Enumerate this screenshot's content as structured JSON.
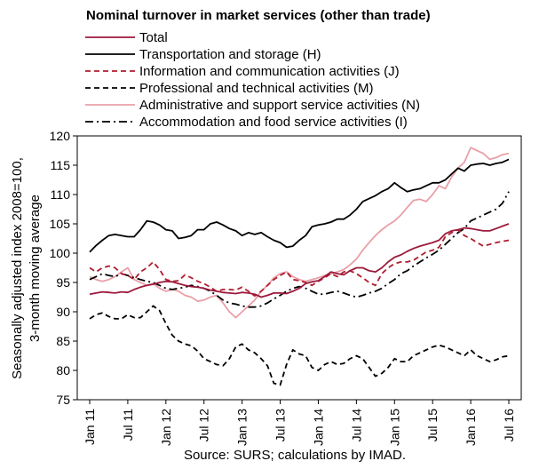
{
  "chart_data": {
    "type": "line",
    "title": "Nominal turnover in market services (other than trade)",
    "ylabel_lines": [
      "Seasonally adjusted index 2008=100,",
      "3-month moving average"
    ],
    "xlabel": "",
    "source": "Source: SURS; calculations by IMAD.",
    "ylim": [
      75,
      120
    ],
    "y_ticks": [
      75,
      80,
      85,
      90,
      95,
      100,
      105,
      110,
      115,
      120
    ],
    "x_ticks": [
      "Jan 11",
      "Jul 11",
      "Jan 12",
      "Jul 12",
      "Jan 13",
      "Jul 13",
      "Jan 14",
      "Jul 14",
      "Jan 15",
      "Jul 15",
      "Jan 16",
      "Jul 16"
    ],
    "grid": false,
    "legend_position": "top",
    "series": [
      {
        "name": "Total",
        "color": "#9c1a3c",
        "dash": "solid",
        "values": [
          93,
          93.2,
          93.4,
          93.3,
          93.2,
          93.4,
          93.3,
          93.8,
          94.2,
          94.5,
          94.7,
          95.0,
          95.2,
          95.1,
          94.8,
          94.5,
          94.3,
          94.2,
          94.0,
          93.7,
          93.5,
          93.3,
          93.2,
          93.1,
          93.3,
          93.2,
          93.0,
          92.5,
          92.8,
          93.2,
          93.2,
          93.1,
          93.5,
          94.0,
          94.8,
          95.1,
          95.3,
          96.0,
          96.8,
          96.5,
          96.3,
          97.0,
          97.5,
          97.5,
          97.0,
          96.8,
          97.5,
          98.5,
          99.3,
          99.7,
          100.3,
          100.8,
          101.2,
          101.5,
          101.8,
          102.2,
          103.3,
          103.8,
          104.0,
          104.3,
          104.2,
          104.0,
          103.8,
          103.8,
          104.2,
          104.6,
          105.0
        ]
      },
      {
        "name": "Transportation and storage (H)",
        "color": "#000000",
        "dash": "solid",
        "values": [
          100.2,
          101.3,
          102.2,
          103.0,
          103.2,
          103.0,
          102.8,
          102.8,
          104.0,
          105.5,
          105.3,
          104.8,
          104.0,
          103.8,
          102.5,
          102.7,
          103.0,
          104.0,
          104.0,
          105.0,
          105.3,
          104.8,
          104.2,
          103.8,
          103.0,
          103.5,
          103.2,
          103.5,
          102.8,
          102.2,
          101.8,
          101.0,
          101.2,
          102.2,
          103.0,
          104.5,
          104.8,
          105.0,
          105.3,
          105.8,
          105.8,
          106.5,
          107.5,
          108.8,
          109.3,
          109.8,
          110.5,
          111.0,
          112.0,
          111.2,
          110.5,
          110.8,
          111.0,
          111.5,
          112.0,
          112.0,
          112.5,
          113.5,
          114.5,
          114.0,
          115.0,
          115.2,
          115.3,
          115.0,
          115.3,
          115.5,
          116.0
        ]
      },
      {
        "name": "Information and communication activities (J)",
        "color": "#b01c2e",
        "dash": "dashed",
        "values": [
          97.5,
          96.8,
          97.5,
          97.8,
          97.5,
          96.5,
          96.2,
          95.5,
          96.8,
          97.5,
          98.5,
          97.2,
          95.5,
          95.2,
          95.3,
          96.3,
          95.8,
          95.2,
          94.8,
          94.2,
          93.5,
          93.8,
          93.8,
          93.7,
          94.2,
          93.5,
          92.7,
          93.5,
          94.5,
          95.5,
          96.2,
          96.8,
          95.5,
          95.3,
          95.0,
          94.5,
          95.2,
          95.8,
          96.5,
          96.0,
          96.8,
          97.0,
          96.5,
          95.8,
          95.0,
          94.5,
          96.5,
          97.5,
          98.2,
          98.5,
          98.5,
          98.8,
          99.5,
          100.2,
          100.5,
          101.0,
          102.8,
          103.5,
          104.0,
          103.0,
          102.5,
          101.8,
          101.2,
          101.5,
          101.8,
          102.0,
          102.2
        ]
      },
      {
        "name": "Professional and technical activities (M)",
        "color": "#000000",
        "dash": "dashed",
        "values": [
          88.8,
          89.5,
          89.8,
          89.2,
          88.8,
          88.8,
          89.5,
          89.0,
          89.0,
          90.0,
          91.0,
          90.2,
          88.0,
          86.0,
          85.0,
          84.5,
          84.2,
          83.3,
          82.0,
          81.5,
          81.0,
          80.8,
          82.0,
          84.0,
          84.5,
          83.5,
          83.0,
          82.0,
          80.8,
          77.8,
          77.5,
          81.0,
          83.5,
          82.8,
          82.5,
          80.5,
          80.0,
          81.0,
          81.5,
          81.0,
          81.2,
          82.0,
          82.5,
          82.0,
          80.5,
          79.0,
          79.5,
          80.5,
          82.0,
          81.5,
          81.5,
          82.5,
          83.0,
          83.5,
          84.0,
          84.3,
          84.0,
          83.5,
          83.0,
          82.5,
          83.5,
          82.5,
          82.0,
          81.5,
          81.8,
          82.3,
          82.5
        ]
      },
      {
        "name": "Administrative and support service activities (N)",
        "color": "#e8a0a8",
        "dash": "solid",
        "values": [
          96.0,
          95.5,
          95.2,
          95.5,
          96.0,
          96.8,
          97.5,
          95.5,
          95.0,
          94.5,
          94.8,
          94.0,
          93.5,
          93.8,
          93.5,
          92.8,
          92.5,
          91.8,
          92.0,
          92.5,
          92.8,
          91.5,
          90.0,
          89.0,
          90.0,
          91.0,
          92.0,
          93.5,
          94.5,
          95.8,
          96.5,
          96.8,
          96.0,
          95.5,
          95.2,
          95.5,
          95.8,
          96.2,
          96.5,
          96.8,
          97.2,
          98.0,
          99.0,
          100.5,
          101.8,
          103.0,
          104.0,
          104.8,
          105.5,
          106.5,
          107.8,
          109.0,
          109.2,
          108.8,
          110.0,
          111.5,
          111.0,
          113.0,
          114.5,
          115.5,
          118.0,
          117.5,
          117.0,
          116.0,
          116.3,
          116.8,
          117.0
        ]
      },
      {
        "name": "Accommodation and food service activities (I)",
        "color": "#000000",
        "dash": "dashdot",
        "values": [
          95.5,
          96.0,
          96.5,
          96.2,
          96.0,
          96.5,
          96.2,
          95.8,
          95.5,
          95.2,
          95.0,
          94.5,
          94.0,
          93.8,
          94.0,
          94.2,
          94.5,
          94.3,
          94.0,
          93.5,
          92.8,
          92.0,
          91.5,
          91.3,
          91.0,
          90.8,
          90.8,
          91.0,
          91.5,
          92.2,
          92.8,
          93.5,
          94.0,
          94.3,
          94.0,
          93.5,
          93.0,
          93.0,
          93.3,
          93.5,
          93.2,
          92.8,
          92.5,
          92.8,
          93.2,
          93.5,
          94.0,
          94.8,
          95.5,
          96.5,
          97.0,
          97.8,
          98.5,
          99.2,
          99.8,
          100.5,
          101.5,
          102.5,
          103.5,
          104.2,
          105.5,
          106.0,
          106.5,
          107.0,
          107.5,
          108.5,
          110.5
        ]
      }
    ]
  }
}
